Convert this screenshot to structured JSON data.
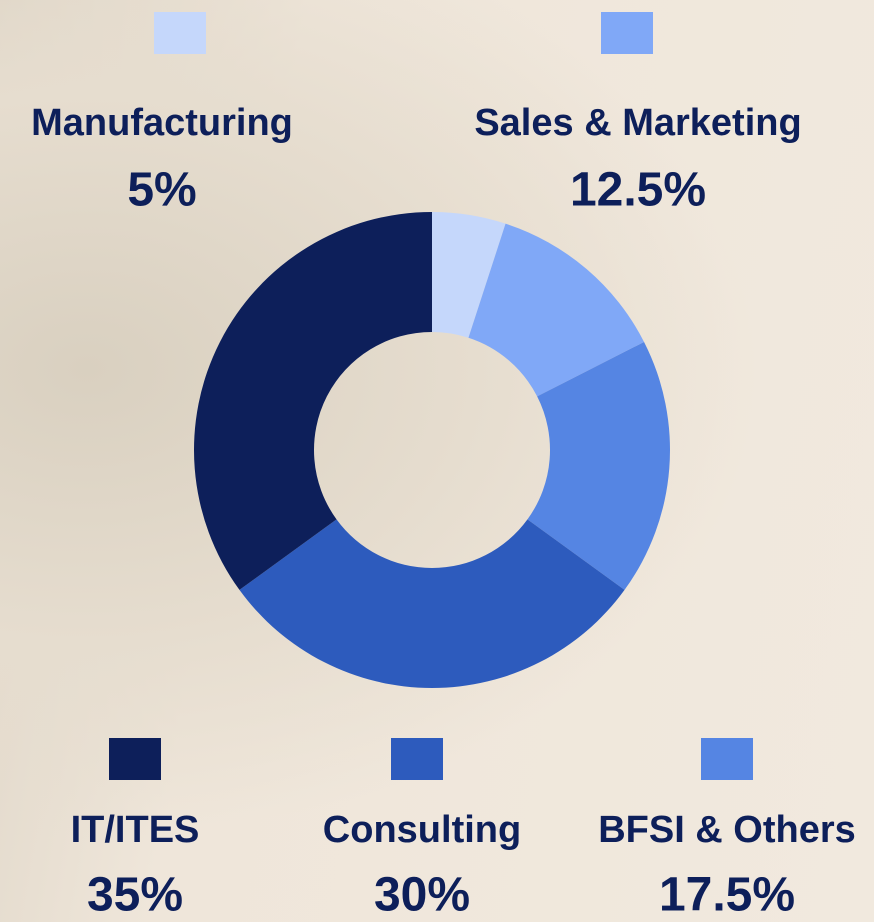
{
  "chart_data": {
    "type": "donut",
    "categories": [
      "Manufacturing",
      "Sales & Marketing",
      "BFSI & Others",
      "Consulting",
      "IT/ITES"
    ],
    "values": [
      5,
      12.5,
      17.5,
      30,
      35
    ],
    "value_labels": [
      "5%",
      "12.5%",
      "17.5%",
      "30%",
      "35%"
    ],
    "colors": [
      "#c5d7fb",
      "#80a8f7",
      "#5585e3",
      "#2d5bbd",
      "#0d1f5a"
    ]
  }
}
